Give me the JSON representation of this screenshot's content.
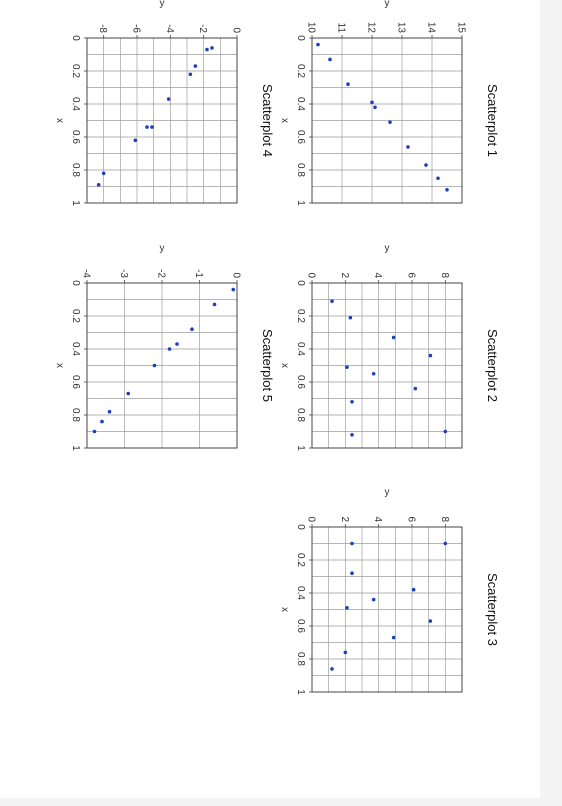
{
  "page": {
    "background": "#ffffff",
    "outer_background": "#f4f4f4"
  },
  "chart_data": [
    {
      "type": "scatter",
      "title": "Scatterplot 1",
      "xlabel": "x",
      "ylabel": "y",
      "xlim": [
        0,
        1
      ],
      "ylim": [
        10,
        15
      ],
      "xticks": [
        "0",
        "0.2",
        "0.4",
        "0.6",
        "0.8",
        "1"
      ],
      "yticks": [
        "10",
        "11",
        "12",
        "13",
        "14",
        "15"
      ],
      "grid": true,
      "point_color": "#1f3fbf",
      "points": [
        {
          "x": 0.04,
          "y": 10.2
        },
        {
          "x": 0.13,
          "y": 10.6
        },
        {
          "x": 0.28,
          "y": 11.2
        },
        {
          "x": 0.39,
          "y": 12.0
        },
        {
          "x": 0.42,
          "y": 12.1
        },
        {
          "x": 0.51,
          "y": 12.6
        },
        {
          "x": 0.66,
          "y": 13.2
        },
        {
          "x": 0.77,
          "y": 13.8
        },
        {
          "x": 0.85,
          "y": 14.2
        },
        {
          "x": 0.92,
          "y": 14.5
        }
      ]
    },
    {
      "type": "scatter",
      "title": "Scatterplot 2",
      "xlabel": "x",
      "ylabel": "y",
      "xlim": [
        0,
        1
      ],
      "ylim": [
        0,
        9
      ],
      "xticks": [
        "0",
        "0.2",
        "0.4",
        "0.6",
        "0.8",
        "1"
      ],
      "yticks": [
        "0",
        "2",
        "4",
        "6",
        "8"
      ],
      "grid": true,
      "point_color": "#1f3fbf",
      "points": [
        {
          "x": 0.11,
          "y": 1.2
        },
        {
          "x": 0.21,
          "y": 2.3
        },
        {
          "x": 0.33,
          "y": 4.9
        },
        {
          "x": 0.44,
          "y": 7.1
        },
        {
          "x": 0.51,
          "y": 2.1
        },
        {
          "x": 0.55,
          "y": 3.7
        },
        {
          "x": 0.64,
          "y": 6.2
        },
        {
          "x": 0.72,
          "y": 2.4
        },
        {
          "x": 0.9,
          "y": 8.0
        },
        {
          "x": 0.92,
          "y": 2.4
        }
      ]
    },
    {
      "type": "scatter",
      "title": "Scatterplot 3",
      "xlabel": "x",
      "ylabel": "y",
      "xlim": [
        0,
        1
      ],
      "ylim": [
        0,
        9
      ],
      "xticks": [
        "0",
        "0.2",
        "0.4",
        "0.6",
        "0.8",
        "1"
      ],
      "yticks": [
        "0",
        "2",
        "4",
        "6",
        "8"
      ],
      "grid": true,
      "point_color": "#1f3fbf",
      "points": [
        {
          "x": 0.1,
          "y": 2.4
        },
        {
          "x": 0.1,
          "y": 8.0
        },
        {
          "x": 0.28,
          "y": 2.4
        },
        {
          "x": 0.38,
          "y": 6.1
        },
        {
          "x": 0.44,
          "y": 3.7
        },
        {
          "x": 0.49,
          "y": 2.1
        },
        {
          "x": 0.57,
          "y": 7.1
        },
        {
          "x": 0.67,
          "y": 4.9
        },
        {
          "x": 0.76,
          "y": 2.0
        },
        {
          "x": 0.86,
          "y": 1.2
        }
      ]
    },
    {
      "type": "scatter",
      "title": "Scatterplot 4",
      "xlabel": "x",
      "ylabel": "y",
      "xlim": [
        0,
        1
      ],
      "ylim": [
        -9,
        0
      ],
      "xticks": [
        "0",
        "0.2",
        "0.4",
        "0.6",
        "0.8",
        "1"
      ],
      "yticks": [
        "0",
        "-2",
        "-4",
        "-6",
        "-8"
      ],
      "grid": true,
      "point_color": "#1f3fbf",
      "points": [
        {
          "x": 0.06,
          "y": -1.5
        },
        {
          "x": 0.07,
          "y": -1.8
        },
        {
          "x": 0.17,
          "y": -2.5
        },
        {
          "x": 0.22,
          "y": -2.8
        },
        {
          "x": 0.37,
          "y": -4.1
        },
        {
          "x": 0.54,
          "y": -5.1
        },
        {
          "x": 0.54,
          "y": -5.4
        },
        {
          "x": 0.62,
          "y": -6.1
        },
        {
          "x": 0.82,
          "y": -8.0
        },
        {
          "x": 0.89,
          "y": -8.3
        }
      ]
    },
    {
      "type": "scatter",
      "title": "Scatterplot 5",
      "xlabel": "x",
      "ylabel": "y",
      "xlim": [
        0,
        1
      ],
      "ylim": [
        -4,
        0
      ],
      "xticks": [
        "0",
        "0.2",
        "0.4",
        "0.6",
        "0.8",
        "1"
      ],
      "yticks": [
        "0",
        "-1",
        "-2",
        "-3",
        "-4"
      ],
      "grid": true,
      "point_color": "#1f3fbf",
      "points": [
        {
          "x": 0.04,
          "y": -0.1
        },
        {
          "x": 0.13,
          "y": -0.6
        },
        {
          "x": 0.28,
          "y": -1.2
        },
        {
          "x": 0.37,
          "y": -1.6
        },
        {
          "x": 0.4,
          "y": -1.8
        },
        {
          "x": 0.5,
          "y": -2.2
        },
        {
          "x": 0.67,
          "y": -2.9
        },
        {
          "x": 0.78,
          "y": -3.4
        },
        {
          "x": 0.84,
          "y": -3.6
        },
        {
          "x": 0.9,
          "y": -3.8
        }
      ]
    }
  ]
}
